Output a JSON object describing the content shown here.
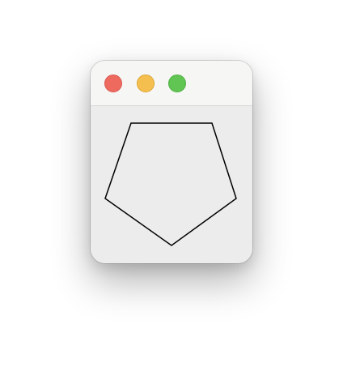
{
  "window": {
    "controls": [
      {
        "name": "close",
        "color": "#ee6a5f"
      },
      {
        "name": "minimize",
        "color": "#f5bf4f"
      },
      {
        "name": "zoom",
        "color": "#61c554"
      }
    ],
    "background": "#ececec",
    "titlebar_background": "#f6f6f5"
  },
  "drawing": {
    "shape": "pentagon",
    "stroke_color": "#000000",
    "fill": "none"
  }
}
